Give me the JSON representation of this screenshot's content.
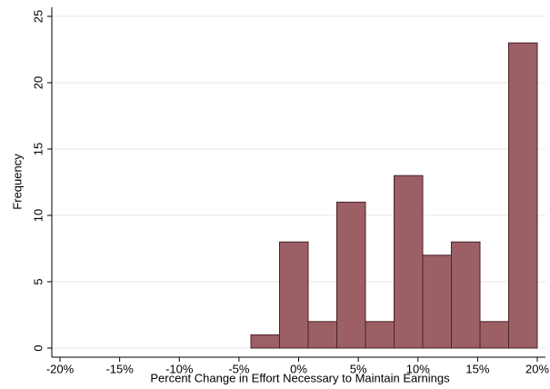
{
  "chart_data": {
    "type": "histogram",
    "xlabel": "Percent Change in Effort Necessary to Maintain Earnings",
    "ylabel": "Frequency",
    "bins": [
      -4,
      -1.6,
      0.8,
      3.2,
      5.6,
      8,
      10.4,
      12.8,
      15.2,
      17.6,
      20
    ],
    "values": [
      1,
      8,
      2,
      11,
      2,
      13,
      7,
      8,
      2,
      23
    ],
    "color": "#9b5f65",
    "edgecolor": "#4a2228",
    "xlim": [
      -20,
      20
    ],
    "xticks": [
      {
        "value": -20,
        "label": "-20%"
      },
      {
        "value": -15,
        "label": "-15%"
      },
      {
        "value": -10,
        "label": "-10%"
      },
      {
        "value": -5,
        "label": "-5%"
      },
      {
        "value": 0,
        "label": "0%"
      },
      {
        "value": 5,
        "label": "5%"
      },
      {
        "value": 10,
        "label": "10%"
      },
      {
        "value": 15,
        "label": "15%"
      },
      {
        "value": 20,
        "label": "20%"
      }
    ],
    "ylim": [
      0,
      25
    ],
    "yticks": [
      0,
      5,
      10,
      15,
      20,
      25
    ],
    "grid": true
  }
}
